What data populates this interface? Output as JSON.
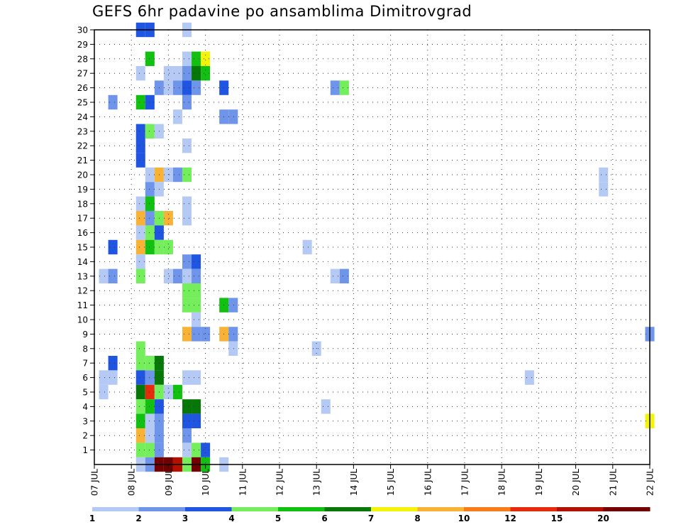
{
  "chart_data": {
    "type": "heatmap",
    "title": "GEFS 6hr padavine po ansamblima Dimitrovgrad",
    "x_labels": [
      "07 JUL",
      "08 JUL",
      "09 JUL",
      "10 JUL",
      "11 JUL",
      "12 JUL",
      "13 JUL",
      "14 JUL",
      "15 JUL",
      "16 JUL",
      "17 JUL",
      "18 JUL",
      "19 JUL",
      "20 JUL",
      "21 JUL",
      "22 JUL"
    ],
    "y_labels": [
      "1",
      "2",
      "3",
      "4",
      "5",
      "6",
      "7",
      "8",
      "9",
      "10",
      "11",
      "12",
      "13",
      "14",
      "15",
      "16",
      "17",
      "18",
      "19",
      "20",
      "21",
      "22",
      "23",
      "24",
      "25",
      "26",
      "27",
      "28",
      "29",
      "30"
    ],
    "y_range": [
      0,
      30
    ],
    "x_range_days": [
      0,
      15
    ],
    "grid": true,
    "color_scale": {
      "labels": [
        "1",
        "2",
        "3",
        "4",
        "5",
        "6",
        "7",
        "8",
        "10",
        "12",
        "15",
        "20"
      ],
      "colors": [
        "#b5c9f5",
        "#6f95ea",
        "#1f55e0",
        "#74ee5a",
        "#12c012",
        "#077807",
        "#f4f40a",
        "#f8b236",
        "#f77d1b",
        "#e42c0c",
        "#b21000",
        "#720000"
      ]
    },
    "cells": [
      {
        "member": 30,
        "day": 1.25,
        "level": 2
      },
      {
        "member": 30,
        "day": 1.5,
        "level": 2
      },
      {
        "member": 30,
        "day": 2.5,
        "level": 0
      },
      {
        "member": 28,
        "day": 1.5,
        "level": 4
      },
      {
        "member": 28,
        "day": 2.5,
        "level": 0
      },
      {
        "member": 28,
        "day": 2.75,
        "level": 4
      },
      {
        "member": 28,
        "day": 3.0,
        "level": 6
      },
      {
        "member": 27,
        "day": 1.25,
        "level": 0
      },
      {
        "member": 27,
        "day": 2.0,
        "level": 0
      },
      {
        "member": 27,
        "day": 2.25,
        "level": 0
      },
      {
        "member": 27,
        "day": 2.5,
        "level": 1
      },
      {
        "member": 27,
        "day": 2.75,
        "level": 5
      },
      {
        "member": 27,
        "day": 3.0,
        "level": 4
      },
      {
        "member": 26,
        "day": 1.75,
        "level": 1
      },
      {
        "member": 26,
        "day": 2.0,
        "level": 0
      },
      {
        "member": 26,
        "day": 2.25,
        "level": 1
      },
      {
        "member": 26,
        "day": 2.5,
        "level": 2
      },
      {
        "member": 26,
        "day": 2.75,
        "level": 1
      },
      {
        "member": 26,
        "day": 3.5,
        "level": 2
      },
      {
        "member": 26,
        "day": 6.5,
        "level": 1
      },
      {
        "member": 26,
        "day": 6.75,
        "level": 3
      },
      {
        "member": 25,
        "day": 0.5,
        "level": 1
      },
      {
        "member": 25,
        "day": 1.25,
        "level": 4
      },
      {
        "member": 25,
        "day": 1.5,
        "level": 2
      },
      {
        "member": 25,
        "day": 2.5,
        "level": 1
      },
      {
        "member": 24,
        "day": 2.25,
        "level": 0
      },
      {
        "member": 24,
        "day": 3.5,
        "level": 1
      },
      {
        "member": 24,
        "day": 3.75,
        "level": 1
      },
      {
        "member": 23,
        "day": 1.25,
        "level": 2
      },
      {
        "member": 23,
        "day": 1.5,
        "level": 3
      },
      {
        "member": 23,
        "day": 1.75,
        "level": 0
      },
      {
        "member": 22,
        "day": 1.25,
        "level": 2
      },
      {
        "member": 22,
        "day": 2.5,
        "level": 0
      },
      {
        "member": 21,
        "day": 1.25,
        "level": 2
      },
      {
        "member": 20,
        "day": 1.5,
        "level": 0
      },
      {
        "member": 20,
        "day": 1.75,
        "level": 7
      },
      {
        "member": 20,
        "day": 2.0,
        "level": 0
      },
      {
        "member": 20,
        "day": 2.25,
        "level": 1
      },
      {
        "member": 20,
        "day": 2.5,
        "level": 3
      },
      {
        "member": 20,
        "day": 13.75,
        "level": 0
      },
      {
        "member": 19,
        "day": 1.5,
        "level": 1
      },
      {
        "member": 19,
        "day": 1.75,
        "level": 0
      },
      {
        "member": 19,
        "day": 13.75,
        "level": 0
      },
      {
        "member": 18,
        "day": 1.25,
        "level": 0
      },
      {
        "member": 18,
        "day": 1.5,
        "level": 4
      },
      {
        "member": 18,
        "day": 2.5,
        "level": 0
      },
      {
        "member": 17,
        "day": 1.25,
        "level": 7
      },
      {
        "member": 17,
        "day": 1.5,
        "level": 1
      },
      {
        "member": 17,
        "day": 1.75,
        "level": 3
      },
      {
        "member": 17,
        "day": 2.0,
        "level": 7
      },
      {
        "member": 17,
        "day": 2.5,
        "level": 0
      },
      {
        "member": 16,
        "day": 1.25,
        "level": 0
      },
      {
        "member": 16,
        "day": 1.5,
        "level": 3
      },
      {
        "member": 16,
        "day": 1.75,
        "level": 2
      },
      {
        "member": 15,
        "day": 0.5,
        "level": 2
      },
      {
        "member": 15,
        "day": 1.25,
        "level": 7
      },
      {
        "member": 15,
        "day": 1.5,
        "level": 4
      },
      {
        "member": 15,
        "day": 1.75,
        "level": 3
      },
      {
        "member": 15,
        "day": 2.0,
        "level": 3
      },
      {
        "member": 15,
        "day": 5.75,
        "level": 0
      },
      {
        "member": 14,
        "day": 1.25,
        "level": 0
      },
      {
        "member": 14,
        "day": 2.5,
        "level": 1
      },
      {
        "member": 14,
        "day": 2.75,
        "level": 2
      },
      {
        "member": 13,
        "day": 0.25,
        "level": 0
      },
      {
        "member": 13,
        "day": 0.5,
        "level": 1
      },
      {
        "member": 13,
        "day": 1.25,
        "level": 3
      },
      {
        "member": 13,
        "day": 2.0,
        "level": 0
      },
      {
        "member": 13,
        "day": 2.25,
        "level": 1
      },
      {
        "member": 13,
        "day": 2.5,
        "level": 0
      },
      {
        "member": 13,
        "day": 2.75,
        "level": 1
      },
      {
        "member": 13,
        "day": 6.5,
        "level": 0
      },
      {
        "member": 13,
        "day": 6.75,
        "level": 1
      },
      {
        "member": 12,
        "day": 2.5,
        "level": 3
      },
      {
        "member": 12,
        "day": 2.75,
        "level": 3
      },
      {
        "member": 11,
        "day": 2.5,
        "level": 3
      },
      {
        "member": 11,
        "day": 2.75,
        "level": 3
      },
      {
        "member": 11,
        "day": 3.5,
        "level": 4
      },
      {
        "member": 11,
        "day": 3.75,
        "level": 1
      },
      {
        "member": 10,
        "day": 2.75,
        "level": 0
      },
      {
        "member": 9,
        "day": 2.5,
        "level": 7
      },
      {
        "member": 9,
        "day": 2.75,
        "level": 1
      },
      {
        "member": 9,
        "day": 3.0,
        "level": 1
      },
      {
        "member": 9,
        "day": 3.5,
        "level": 7
      },
      {
        "member": 9,
        "day": 3.75,
        "level": 1
      },
      {
        "member": 9,
        "day": 15.0,
        "level": 1
      },
      {
        "member": 8,
        "day": 1.25,
        "level": 3
      },
      {
        "member": 8,
        "day": 3.75,
        "level": 0
      },
      {
        "member": 8,
        "day": 6.0,
        "level": 0
      },
      {
        "member": 7,
        "day": 0.5,
        "level": 2
      },
      {
        "member": 7,
        "day": 1.25,
        "level": 3
      },
      {
        "member": 7,
        "day": 1.5,
        "level": 3
      },
      {
        "member": 7,
        "day": 1.75,
        "level": 5
      },
      {
        "member": 6,
        "day": 0.25,
        "level": 0
      },
      {
        "member": 6,
        "day": 0.5,
        "level": 0
      },
      {
        "member": 6,
        "day": 1.25,
        "level": 2
      },
      {
        "member": 6,
        "day": 1.5,
        "level": 1
      },
      {
        "member": 6,
        "day": 1.75,
        "level": 5
      },
      {
        "member": 6,
        "day": 2.5,
        "level": 0
      },
      {
        "member": 6,
        "day": 2.75,
        "level": 0
      },
      {
        "member": 6,
        "day": 11.75,
        "level": 0
      },
      {
        "member": 5,
        "day": 0.25,
        "level": 0
      },
      {
        "member": 5,
        "day": 1.25,
        "level": 5
      },
      {
        "member": 5,
        "day": 1.5,
        "level": 9
      },
      {
        "member": 5,
        "day": 1.75,
        "level": 3
      },
      {
        "member": 5,
        "day": 2.0,
        "level": 0
      },
      {
        "member": 5,
        "day": 2.25,
        "level": 4
      },
      {
        "member": 4,
        "day": 1.25,
        "level": 3
      },
      {
        "member": 4,
        "day": 1.5,
        "level": 4
      },
      {
        "member": 4,
        "day": 1.75,
        "level": 2
      },
      {
        "member": 4,
        "day": 2.5,
        "level": 5
      },
      {
        "member": 4,
        "day": 2.75,
        "level": 5
      },
      {
        "member": 4,
        "day": 6.25,
        "level": 0
      },
      {
        "member": 3,
        "day": 1.25,
        "level": 4
      },
      {
        "member": 3,
        "day": 1.5,
        "level": 0
      },
      {
        "member": 3,
        "day": 1.75,
        "level": 1
      },
      {
        "member": 3,
        "day": 2.5,
        "level": 2
      },
      {
        "member": 3,
        "day": 2.75,
        "level": 2
      },
      {
        "member": 3,
        "day": 15.0,
        "level": 6
      },
      {
        "member": 2,
        "day": 1.25,
        "level": 7
      },
      {
        "member": 2,
        "day": 1.5,
        "level": 0
      },
      {
        "member": 2,
        "day": 1.75,
        "level": 1
      },
      {
        "member": 2,
        "day": 2.5,
        "level": 1
      },
      {
        "member": 1,
        "day": 1.25,
        "level": 3
      },
      {
        "member": 1,
        "day": 1.5,
        "level": 3
      },
      {
        "member": 1,
        "day": 1.75,
        "level": 1
      },
      {
        "member": 1,
        "day": 2.5,
        "level": 0
      },
      {
        "member": 1,
        "day": 2.75,
        "level": 3
      },
      {
        "member": 1,
        "day": 3.0,
        "level": 2
      },
      {
        "member": 0,
        "day": 1.25,
        "level": 0
      },
      {
        "member": 0,
        "day": 1.5,
        "level": 1
      },
      {
        "member": 0,
        "day": 1.75,
        "level": 11
      },
      {
        "member": 0,
        "day": 2.0,
        "level": 11
      },
      {
        "member": 0,
        "day": 2.25,
        "level": 10
      },
      {
        "member": 0,
        "day": 2.5,
        "level": 3
      },
      {
        "member": 0,
        "day": 2.75,
        "level": 11
      },
      {
        "member": 0,
        "day": 3.0,
        "level": 4
      },
      {
        "member": 0,
        "day": 3.5,
        "level": 0
      }
    ]
  }
}
